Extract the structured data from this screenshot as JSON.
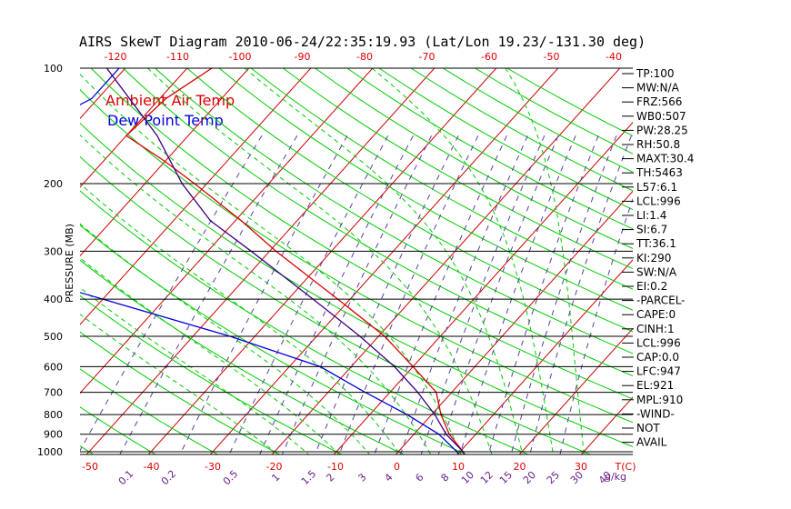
{
  "title": "AIRS SkewT Diagram 2010-06-24/22:35:19.93 (Lat/Lon 19.23/-131.30 deg)",
  "colors": {
    "temperature": "#dd0000",
    "dewpoint": "#0000dd",
    "parcel": "#3a0080",
    "isotherm": "#cc0000",
    "dry_adiabat": "#00cc00",
    "moist_adiabat": "#00cc00",
    "mixing_ratio": "#5a3fa0",
    "isobar": "#000000",
    "tick_label_top": "#dd0000",
    "tick_label_bottom": "#dd0000",
    "mixing_label": "#6a1f8a"
  },
  "chart_data": {
    "type": "line",
    "chart_kind": "skew-T log-P diagram",
    "ylabel": "PRESSURE (MB)",
    "y_scale": "log",
    "ylim": [
      1050,
      100
    ],
    "pressure_ticks": [
      100,
      200,
      300,
      400,
      500,
      600,
      700,
      800,
      900,
      1000
    ],
    "pressure_tick_labels": [
      "100",
      "200",
      "300",
      "400",
      "500",
      "600",
      "700",
      "800",
      "900",
      "1000"
    ],
    "top_temperature_ticks": [
      "-120",
      "-110",
      "-100",
      "-90",
      "-80",
      "-70",
      "-60",
      "-50",
      "-40"
    ],
    "bottom_temperature_ticks": [
      "-50",
      "-40",
      "-30",
      "-20",
      "-10",
      "0",
      "10",
      "20",
      "30"
    ],
    "bottom_temperature_unit": "T(C)",
    "mixing_ratio_ticks": [
      "0.1",
      "0.2",
      "0.5",
      "1",
      "1.5",
      "2",
      "3",
      "4",
      "6",
      "8",
      "10",
      "12",
      "15",
      "20",
      "25",
      "30",
      "40"
    ],
    "mixing_ratio_unit": "g/kg",
    "legend": [
      {
        "label": "Ambient Air Temp",
        "color": "#dd0000"
      },
      {
        "label": "Dew Point Temp",
        "color": "#0000dd"
      }
    ],
    "series": [
      {
        "name": "Ambient Air Temp",
        "color": "#dd0000",
        "points": [
          {
            "p": 100,
            "t": -76
          },
          {
            "p": 120,
            "t": -79
          },
          {
            "p": 150,
            "t": -80
          },
          {
            "p": 175,
            "t": -70
          },
          {
            "p": 200,
            "t": -62
          },
          {
            "p": 250,
            "t": -49
          },
          {
            "p": 300,
            "t": -39
          },
          {
            "p": 400,
            "t": -22
          },
          {
            "p": 500,
            "t": -9
          },
          {
            "p": 600,
            "t": 0
          },
          {
            "p": 700,
            "t": 7.5
          },
          {
            "p": 800,
            "t": 11.5
          },
          {
            "p": 900,
            "t": 15.7
          },
          {
            "p": 1000,
            "t": 20.5
          },
          {
            "p": 1013,
            "t": 21
          }
        ]
      },
      {
        "name": "Dew Point Temp",
        "color": "#0000dd",
        "points": [
          {
            "p": 100,
            "t": -91
          },
          {
            "p": 120,
            "t": -91
          },
          {
            "p": 150,
            "t": -97
          },
          {
            "p": 200,
            "t": -100
          },
          {
            "p": 250,
            "t": -107
          },
          {
            "p": 300,
            "t": -94
          },
          {
            "p": 400,
            "t": -60
          },
          {
            "p": 500,
            "t": -34
          },
          {
            "p": 600,
            "t": -15
          },
          {
            "p": 700,
            "t": -4
          },
          {
            "p": 800,
            "t": 6
          },
          {
            "p": 900,
            "t": 14
          },
          {
            "p": 1000,
            "t": 19.5
          },
          {
            "p": 1013,
            "t": 20
          }
        ]
      },
      {
        "name": "PARCEL",
        "color": "#3a0080",
        "points": [
          {
            "p": 100,
            "t": -93
          },
          {
            "p": 150,
            "t": -75
          },
          {
            "p": 200,
            "t": -64
          },
          {
            "p": 250,
            "t": -54
          },
          {
            "p": 300,
            "t": -43
          },
          {
            "p": 400,
            "t": -26
          },
          {
            "p": 500,
            "t": -13
          },
          {
            "p": 600,
            "t": -3
          },
          {
            "p": 700,
            "t": 4.5
          },
          {
            "p": 800,
            "t": 10.5
          },
          {
            "p": 900,
            "t": 15.2
          },
          {
            "p": 1000,
            "t": 20.5
          },
          {
            "p": 1013,
            "t": 21
          }
        ]
      }
    ]
  },
  "indices": [
    "TP:100",
    "MW:N/A",
    "FRZ:566",
    "WB0:507",
    "PW:28.25",
    "RH:50.8",
    "MAXT:30.4",
    "TH:5463",
    "L57:6.1",
    "LCL:996",
    "LI:1.4",
    "SI:6.7",
    "TT:36.1",
    "KI:290",
    "SW:N/A",
    "EI:0.2",
    "-PARCEL-",
    "CAPE:0",
    "CINH:1",
    "LCL:996",
    "CAP:0.0",
    "LFC:947",
    "EL:921",
    "MPL:910",
    "-WIND-",
    "NOT",
    "AVAIL"
  ]
}
